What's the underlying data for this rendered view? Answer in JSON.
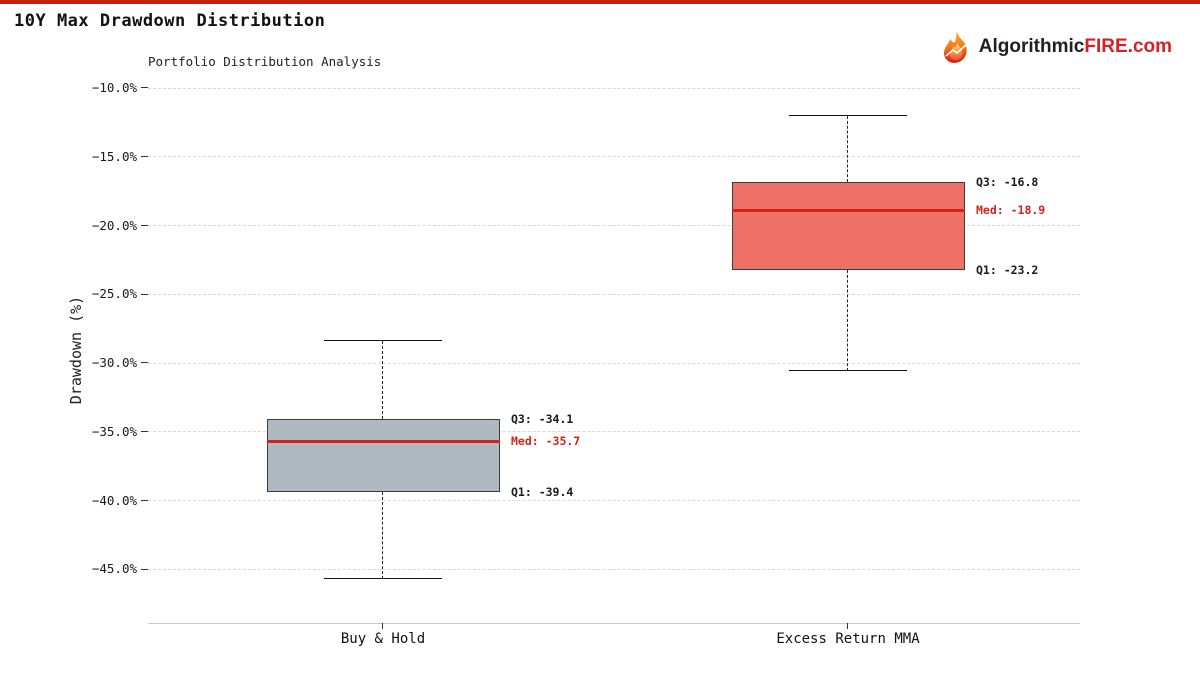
{
  "page": {
    "title": "10Y Max Drawdown Distribution",
    "accent_color": "#c8210f"
  },
  "logo": {
    "text_black": "Algorithmic",
    "text_red": "FIRE",
    "text_suffix": ".com",
    "red_color": "#d91f26",
    "icon": "flame-icon"
  },
  "chart_data": {
    "type": "boxplot",
    "title": "Portfolio Distribution Analysis",
    "ylabel": "Drawdown (%)",
    "xlabel": "",
    "grid": true,
    "ylim": [
      -47.5,
      -9.5
    ],
    "y_ticks": [
      -10,
      -15,
      -20,
      -25,
      -30,
      -35,
      -40,
      -45
    ],
    "y_tick_labels": [
      "−10.0%",
      "−15.0%",
      "−20.0%",
      "−25.0%",
      "−30.0%",
      "−35.0%",
      "−40.0%",
      "−45.0%"
    ],
    "categories": [
      "Buy & Hold",
      "Excess Return MMA"
    ],
    "median_color": "#d42419",
    "series": [
      {
        "name": "Buy & Hold",
        "whisker_low": -45.7,
        "q1": -39.4,
        "median": -35.7,
        "q3": -34.1,
        "whisker_high": -28.4,
        "fill": "#aeb9c2",
        "annotations": {
          "q3": "Q3: -34.1",
          "med": "Med: -35.7",
          "q1": "Q1: -39.4"
        }
      },
      {
        "name": "Excess Return MMA",
        "whisker_low": -30.6,
        "q1": -23.2,
        "median": -18.9,
        "q3": -16.8,
        "whisker_high": -12.0,
        "fill": "#ee7168",
        "annotations": {
          "q3": "Q3: -16.8",
          "med": "Med: -18.9",
          "q1": "Q1: -23.2"
        }
      }
    ]
  }
}
